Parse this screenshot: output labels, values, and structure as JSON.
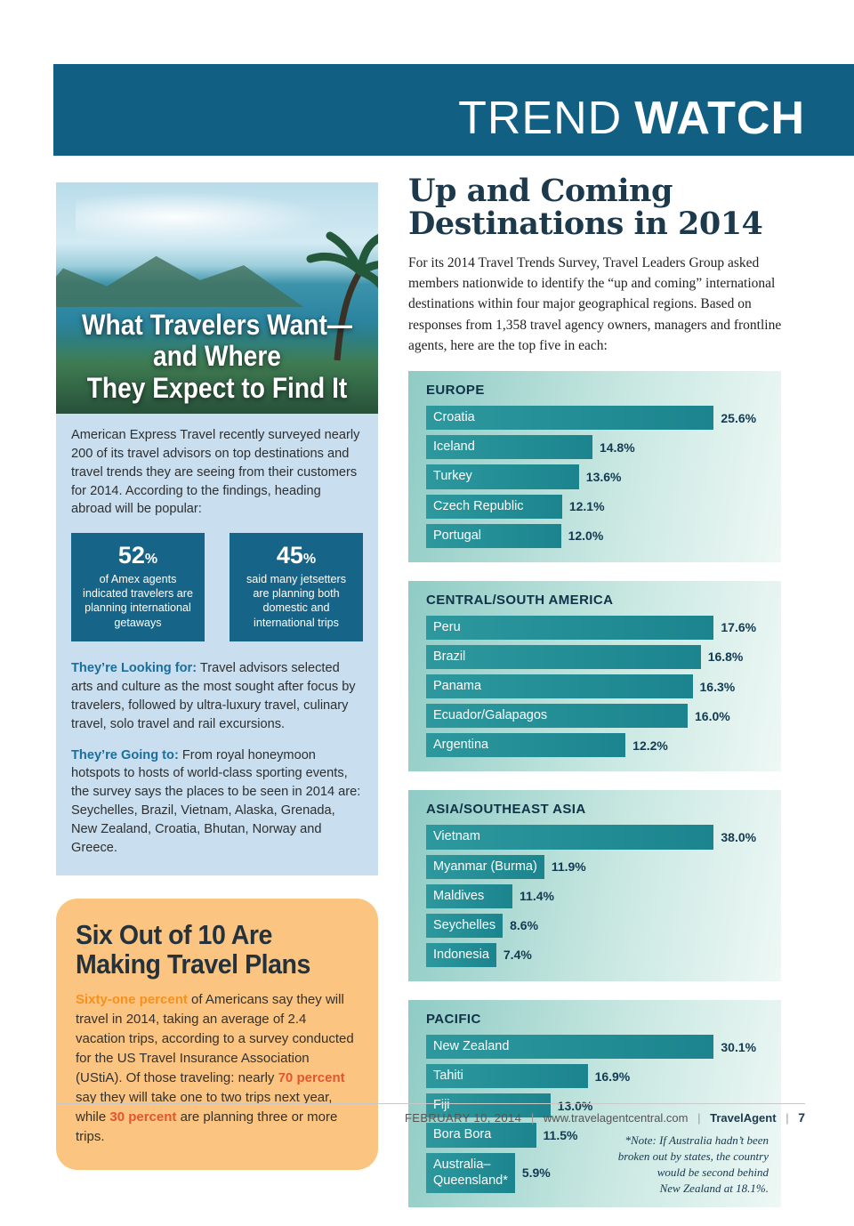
{
  "header": {
    "title_light": "TREND",
    "title_bold": "WATCH"
  },
  "left": {
    "photo_title": "What Travelers Want—\nand Where\nThey Expect to Find It",
    "intro": "American Express Travel recently surveyed nearly 200 of its travel advisors on top destinations and travel trends they are seeing from their customers for 2014. According to the findings, heading abroad will be popular:",
    "stats": [
      {
        "value": "52",
        "unit": "%",
        "caption": "of Amex agents indicated travelers are planning international getaways"
      },
      {
        "value": "45",
        "unit": "%",
        "caption": "said many jetsetters are planning both domestic and international trips"
      }
    ],
    "looking": {
      "lead": "They’re Looking for:",
      "text": " Travel advisors selected arts and culture as the most sought after focus by travelers, followed by ultra-luxury travel, culinary travel, solo travel and rail excursions."
    },
    "going": {
      "lead": "They’re Going to:",
      "text": " From royal honeymoon hotspots to hosts of world-class sporting events, the survey says the places to be seen in 2014 are: Seychelles, Brazil, Vietnam, Alaska, Grenada, New Zealand, Croatia, Bhutan, Norway and Greece."
    },
    "orange": {
      "title": "Six Out of 10 Are\nMaking Travel Plans",
      "segments": [
        {
          "text": "Sixty-one percent",
          "highlight": true,
          "tone": "orange"
        },
        {
          "text": " of Americans say they will travel in 2014, taking an average of 2.4 vacation trips, according to a survey conducted for the US Travel Insurance Association (UStiA). Of those traveling: nearly ",
          "highlight": false
        },
        {
          "text": "70 percent",
          "highlight": true,
          "tone": "red"
        },
        {
          "text": " say they will take one to two trips next year, while ",
          "highlight": false
        },
        {
          "text": "30 percent",
          "highlight": true,
          "tone": "red"
        },
        {
          "text": " are planning three or more trips.",
          "highlight": false
        }
      ]
    }
  },
  "right": {
    "title": "Up and Coming\nDestinations in 2014",
    "intro": "For its 2014 Travel Trends Survey, Travel Leaders Group asked members nationwide to identify the “up and coming” international destinations within four major geographical regions. Based on responses from 1,358 travel agency owners, managers and frontline agents, here are the top five in each:"
  },
  "chart_data": [
    {
      "type": "bar",
      "title": "EUROPE",
      "categories": [
        "Croatia",
        "Iceland",
        "Turkey",
        "Czech Republic",
        "Portugal"
      ],
      "values": [
        25.6,
        14.8,
        13.6,
        12.1,
        12.0
      ],
      "unit": "%"
    },
    {
      "type": "bar",
      "title": "CENTRAL/SOUTH AMERICA",
      "categories": [
        "Peru",
        "Brazil",
        "Panama",
        "Ecuador/Galapagos",
        "Argentina"
      ],
      "values": [
        17.6,
        16.8,
        16.3,
        16.0,
        12.2
      ],
      "unit": "%"
    },
    {
      "type": "bar",
      "title": "ASIA/SOUTHEAST ASIA",
      "categories": [
        "Vietnam",
        "Myanmar (Burma)",
        "Maldives",
        "Seychelles",
        "Indonesia"
      ],
      "values": [
        38.0,
        11.9,
        11.4,
        8.6,
        7.4
      ],
      "unit": "%"
    },
    {
      "type": "bar",
      "title": "PACIFIC",
      "categories": [
        "New Zealand",
        "Tahiti",
        "Fiji",
        "Bora Bora",
        "Australia–\nQueensland*"
      ],
      "values": [
        30.1,
        16.9,
        13.0,
        11.5,
        5.9
      ],
      "unit": "%",
      "note": "*Note: If Australia hadn’t been\nbroken out by states, the country\nwould be second behind\nNew Zealand at 18.1%."
    }
  ],
  "footer": {
    "date": "FEBRUARY 10, 2014",
    "separator": "|",
    "url": "www.travelagentcentral.com",
    "brand": "TravelAgent",
    "page_number": "7"
  },
  "colors": {
    "banner_blue": "#116084",
    "stat_box_blue": "#166487",
    "light_blue_bg": "#c9dff0",
    "bar_teal": "#1f8a93",
    "orange_box_bg": "#fbc581",
    "highlight_orange": "#f6911e",
    "highlight_red": "#e2552d",
    "dark_navy_text": "#12384f"
  }
}
